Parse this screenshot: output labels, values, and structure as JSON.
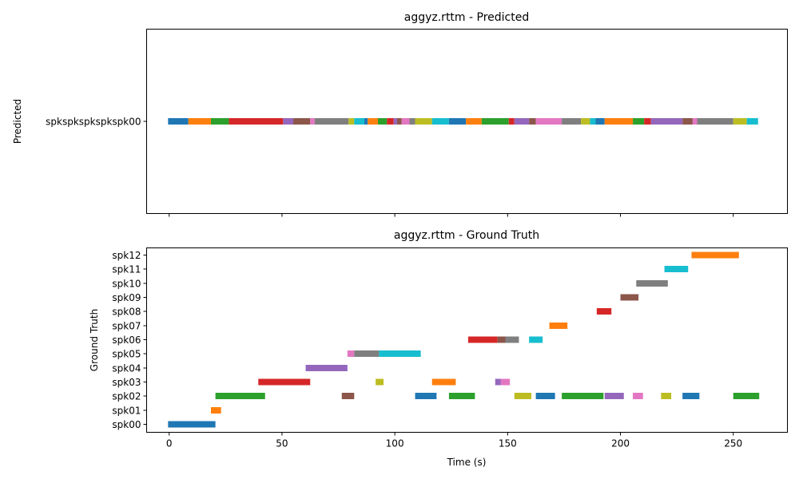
{
  "chart_data": [
    {
      "type": "timeline",
      "title": "aggyz.rttm - Predicted",
      "ylabel": "Predicted",
      "xlabel": "",
      "xlim": [
        -10,
        274
      ],
      "x_ticks": [
        0,
        50,
        100,
        150,
        200,
        250
      ],
      "show_x_tick_labels": false,
      "rows": [
        "spkspkspkspkspk00"
      ],
      "segments": [
        {
          "row": 0,
          "start": -0.5,
          "end": 8.5,
          "color": "#1f77b4"
        },
        {
          "row": 0,
          "start": 8.5,
          "end": 18.5,
          "color": "#ff7f0e"
        },
        {
          "row": 0,
          "start": 18.5,
          "end": 26.5,
          "color": "#2ca02c"
        },
        {
          "row": 0,
          "start": 26.5,
          "end": 50.5,
          "color": "#d62728"
        },
        {
          "row": 0,
          "start": 50.5,
          "end": 55,
          "color": "#9467bd"
        },
        {
          "row": 0,
          "start": 55,
          "end": 62.5,
          "color": "#8c564b"
        },
        {
          "row": 0,
          "start": 62.5,
          "end": 64.5,
          "color": "#e377c2"
        },
        {
          "row": 0,
          "start": 64.5,
          "end": 79.5,
          "color": "#7f7f7f"
        },
        {
          "row": 0,
          "start": 79.5,
          "end": 82,
          "color": "#bcbd22"
        },
        {
          "row": 0,
          "start": 82,
          "end": 86.5,
          "color": "#17becf"
        },
        {
          "row": 0,
          "start": 86.5,
          "end": 88,
          "color": "#1f77b4"
        },
        {
          "row": 0,
          "start": 88,
          "end": 92.5,
          "color": "#ff7f0e"
        },
        {
          "row": 0,
          "start": 92.5,
          "end": 96.5,
          "color": "#2ca02c"
        },
        {
          "row": 0,
          "start": 96.5,
          "end": 99.5,
          "color": "#d62728"
        },
        {
          "row": 0,
          "start": 99.5,
          "end": 101,
          "color": "#9467bd"
        },
        {
          "row": 0,
          "start": 101,
          "end": 103,
          "color": "#8c564b"
        },
        {
          "row": 0,
          "start": 103,
          "end": 106.5,
          "color": "#e377c2"
        },
        {
          "row": 0,
          "start": 106.5,
          "end": 109,
          "color": "#7f7f7f"
        },
        {
          "row": 0,
          "start": 109,
          "end": 116.5,
          "color": "#bcbd22"
        },
        {
          "row": 0,
          "start": 116.5,
          "end": 124,
          "color": "#17becf"
        },
        {
          "row": 0,
          "start": 124,
          "end": 131.5,
          "color": "#1f77b4"
        },
        {
          "row": 0,
          "start": 131.5,
          "end": 138.5,
          "color": "#ff7f0e"
        },
        {
          "row": 0,
          "start": 138.5,
          "end": 150.5,
          "color": "#2ca02c"
        },
        {
          "row": 0,
          "start": 150.5,
          "end": 153,
          "color": "#d62728"
        },
        {
          "row": 0,
          "start": 153,
          "end": 159.5,
          "color": "#9467bd"
        },
        {
          "row": 0,
          "start": 159.5,
          "end": 162.5,
          "color": "#8c564b"
        },
        {
          "row": 0,
          "start": 162.5,
          "end": 174,
          "color": "#e377c2"
        },
        {
          "row": 0,
          "start": 174,
          "end": 182.5,
          "color": "#7f7f7f"
        },
        {
          "row": 0,
          "start": 182.5,
          "end": 186.5,
          "color": "#bcbd22"
        },
        {
          "row": 0,
          "start": 186.5,
          "end": 189,
          "color": "#17becf"
        },
        {
          "row": 0,
          "start": 189,
          "end": 193,
          "color": "#1f77b4"
        },
        {
          "row": 0,
          "start": 193,
          "end": 205.5,
          "color": "#ff7f0e"
        },
        {
          "row": 0,
          "start": 205.5,
          "end": 210.5,
          "color": "#2ca02c"
        },
        {
          "row": 0,
          "start": 210.5,
          "end": 213.5,
          "color": "#d62728"
        },
        {
          "row": 0,
          "start": 213.5,
          "end": 227.5,
          "color": "#9467bd"
        },
        {
          "row": 0,
          "start": 227.5,
          "end": 232,
          "color": "#8c564b"
        },
        {
          "row": 0,
          "start": 232,
          "end": 234,
          "color": "#e377c2"
        },
        {
          "row": 0,
          "start": 234,
          "end": 250,
          "color": "#7f7f7f"
        },
        {
          "row": 0,
          "start": 250,
          "end": 256,
          "color": "#bcbd22"
        },
        {
          "row": 0,
          "start": 256,
          "end": 261,
          "color": "#17becf"
        }
      ]
    },
    {
      "type": "timeline",
      "title": "aggyz.rttm - Ground Truth",
      "ylabel": "Ground Truth",
      "xlabel": "Time (s)",
      "xlim": [
        -10,
        274
      ],
      "x_ticks": [
        0,
        50,
        100,
        150,
        200,
        250
      ],
      "show_x_tick_labels": true,
      "rows": [
        "spk00",
        "spk01",
        "spk02",
        "spk03",
        "spk04",
        "spk05",
        "spk06",
        "spk07",
        "spk08",
        "spk09",
        "spk10",
        "spk11",
        "spk12"
      ],
      "segments": [
        {
          "row": 0,
          "start": -0.5,
          "end": 20.5,
          "color": "#1f77b4"
        },
        {
          "row": 1,
          "start": 18.5,
          "end": 23,
          "color": "#ff7f0e"
        },
        {
          "row": 2,
          "start": 20.5,
          "end": 42.5,
          "color": "#2ca02c"
        },
        {
          "row": 2,
          "start": 76.5,
          "end": 82,
          "color": "#8c564b"
        },
        {
          "row": 2,
          "start": 109,
          "end": 118.5,
          "color": "#1f77b4"
        },
        {
          "row": 2,
          "start": 124,
          "end": 135.5,
          "color": "#2ca02c"
        },
        {
          "row": 2,
          "start": 153,
          "end": 160.5,
          "color": "#bcbd22"
        },
        {
          "row": 2,
          "start": 162.5,
          "end": 171,
          "color": "#1f77b4"
        },
        {
          "row": 2,
          "start": 174,
          "end": 192.5,
          "color": "#2ca02c"
        },
        {
          "row": 2,
          "start": 193,
          "end": 201.5,
          "color": "#9467bd"
        },
        {
          "row": 2,
          "start": 205.5,
          "end": 210,
          "color": "#e377c2"
        },
        {
          "row": 2,
          "start": 218,
          "end": 222.5,
          "color": "#bcbd22"
        },
        {
          "row": 2,
          "start": 227.5,
          "end": 235,
          "color": "#1f77b4"
        },
        {
          "row": 2,
          "start": 250,
          "end": 261.5,
          "color": "#2ca02c"
        },
        {
          "row": 3,
          "start": 39.5,
          "end": 62.5,
          "color": "#d62728"
        },
        {
          "row": 3,
          "start": 91.5,
          "end": 95,
          "color": "#bcbd22"
        },
        {
          "row": 3,
          "start": 116.5,
          "end": 127,
          "color": "#ff7f0e"
        },
        {
          "row": 3,
          "start": 144.5,
          "end": 147,
          "color": "#9467bd"
        },
        {
          "row": 3,
          "start": 147,
          "end": 151,
          "color": "#e377c2"
        },
        {
          "row": 4,
          "start": 60.5,
          "end": 79,
          "color": "#9467bd"
        },
        {
          "row": 5,
          "start": 79,
          "end": 82,
          "color": "#e377c2"
        },
        {
          "row": 5,
          "start": 82,
          "end": 93,
          "color": "#7f7f7f"
        },
        {
          "row": 5,
          "start": 93,
          "end": 111.5,
          "color": "#17becf"
        },
        {
          "row": 6,
          "start": 132.5,
          "end": 145.5,
          "color": "#d62728"
        },
        {
          "row": 6,
          "start": 145.5,
          "end": 149,
          "color": "#8c564b"
        },
        {
          "row": 6,
          "start": 149,
          "end": 155,
          "color": "#7f7f7f"
        },
        {
          "row": 6,
          "start": 159.5,
          "end": 165.5,
          "color": "#17becf"
        },
        {
          "row": 7,
          "start": 168.5,
          "end": 176.5,
          "color": "#ff7f0e"
        },
        {
          "row": 8,
          "start": 189.5,
          "end": 196,
          "color": "#d62728"
        },
        {
          "row": 9,
          "start": 200,
          "end": 208,
          "color": "#8c564b"
        },
        {
          "row": 10,
          "start": 207,
          "end": 221,
          "color": "#7f7f7f"
        },
        {
          "row": 11,
          "start": 219.5,
          "end": 230,
          "color": "#17becf"
        },
        {
          "row": 12,
          "start": 231.5,
          "end": 252.5,
          "color": "#ff7f0e"
        }
      ]
    }
  ]
}
